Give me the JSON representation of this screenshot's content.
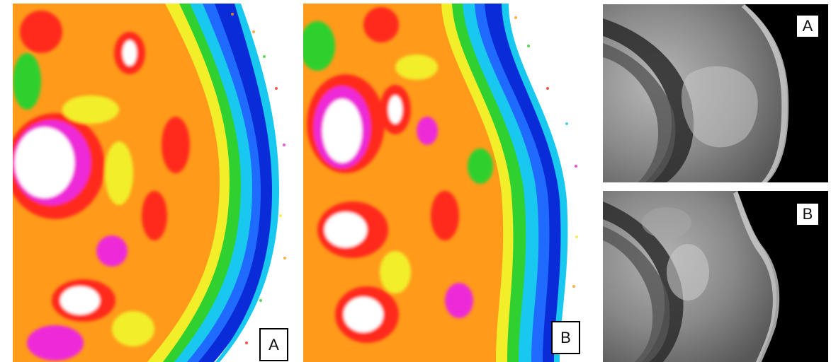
{
  "panels": {
    "color_map_a": {
      "label": "A"
    },
    "color_map_b": {
      "label": "B"
    },
    "mri_a": {
      "label": "A"
    },
    "mri_b": {
      "label": "B"
    }
  },
  "colors": {
    "background": "#ffffff",
    "scale_dark_blue": "#0a2bd8",
    "scale_blue": "#1f6bff",
    "scale_cyan": "#18c8ee",
    "scale_green": "#2fd02f",
    "scale_yellow": "#f2ee2a",
    "scale_orange": "#ff9a1a",
    "scale_red": "#ff2a1a",
    "scale_magenta": "#ee2ad8",
    "scale_white": "#ffffff",
    "mri_black": "#000000",
    "mri_gray": "#8a8a8a"
  }
}
